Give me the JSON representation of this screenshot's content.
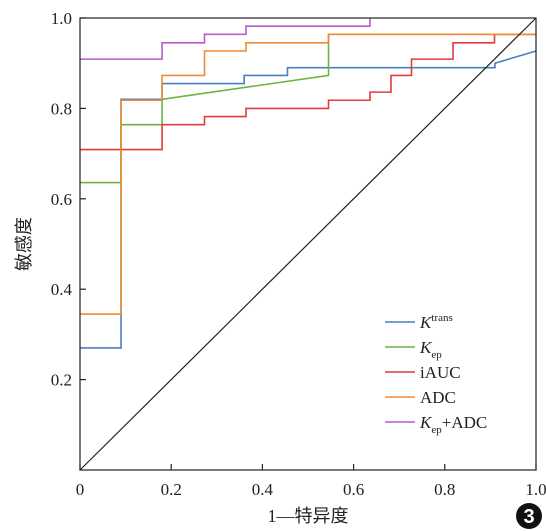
{
  "chart_data": {
    "type": "line",
    "title": "",
    "xlabel": "1—特异度",
    "ylabel": "敏感度",
    "xlim": [
      0,
      1.0
    ],
    "ylim": [
      0,
      1.0
    ],
    "xticks": [
      "0",
      "0.2",
      "0.4",
      "0.6",
      "0.8",
      "1.0"
    ],
    "yticks": [
      "0.2",
      "0.4",
      "0.6",
      "0.8",
      "1.0"
    ],
    "xtick_values": [
      0,
      0.2,
      0.4,
      0.6,
      0.8,
      1.0
    ],
    "ytick_values": [
      0.2,
      0.4,
      0.6,
      0.8,
      1.0
    ],
    "grid": false,
    "legend_position": "bottom-right",
    "figure_number": "3",
    "series": [
      {
        "name": "Ktrans",
        "name_base": "K",
        "name_sup": "trans",
        "name_sub": "",
        "name_suffix": "",
        "color": "#4a7fc4",
        "points": [
          [
            0,
            0.27
          ],
          [
            0.09,
            0.27
          ],
          [
            0.09,
            0.82
          ],
          [
            0.18,
            0.82
          ],
          [
            0.18,
            0.855
          ],
          [
            0.36,
            0.855
          ],
          [
            0.36,
            0.873
          ],
          [
            0.455,
            0.873
          ],
          [
            0.455,
            0.89
          ],
          [
            0.91,
            0.89
          ],
          [
            0.91,
            0.9
          ],
          [
            1.0,
            0.927
          ]
        ]
      },
      {
        "name": "Kep",
        "name_base": "K",
        "name_sup": "",
        "name_sub": "ep",
        "name_suffix": "",
        "color": "#6db33f",
        "points": [
          [
            0,
            0.636
          ],
          [
            0.09,
            0.636
          ],
          [
            0.09,
            0.764
          ],
          [
            0.18,
            0.764
          ],
          [
            0.18,
            0.82
          ],
          [
            0.545,
            0.873
          ],
          [
            0.545,
            0.964
          ],
          [
            1.0,
            0.964
          ]
        ]
      },
      {
        "name": "iAUC",
        "name_base": "iAUC",
        "name_sup": "",
        "name_sub": "",
        "name_suffix": "",
        "color": "#e03c3c",
        "points": [
          [
            0,
            0.709
          ],
          [
            0.18,
            0.709
          ],
          [
            0.18,
            0.764
          ],
          [
            0.273,
            0.764
          ],
          [
            0.273,
            0.782
          ],
          [
            0.364,
            0.782
          ],
          [
            0.364,
            0.8
          ],
          [
            0.545,
            0.8
          ],
          [
            0.545,
            0.818
          ],
          [
            0.636,
            0.818
          ],
          [
            0.636,
            0.836
          ],
          [
            0.636,
            0.836
          ],
          [
            0.636,
            0.836
          ],
          [
            0.682,
            0.836
          ],
          [
            0.682,
            0.873
          ],
          [
            0.727,
            0.873
          ],
          [
            0.727,
            0.909
          ],
          [
            0.818,
            0.909
          ],
          [
            0.818,
            0.945
          ],
          [
            0.909,
            0.945
          ],
          [
            0.909,
            0.964
          ],
          [
            1.0,
            0.964
          ]
        ]
      },
      {
        "name": "ADC",
        "name_base": "ADC",
        "name_sup": "",
        "name_sub": "",
        "name_suffix": "",
        "color": "#f08c35",
        "points": [
          [
            0,
            0.345
          ],
          [
            0.09,
            0.345
          ],
          [
            0.09,
            0.818
          ],
          [
            0.18,
            0.818
          ],
          [
            0.18,
            0.873
          ],
          [
            0.273,
            0.873
          ],
          [
            0.273,
            0.927
          ],
          [
            0.364,
            0.927
          ],
          [
            0.364,
            0.945
          ],
          [
            0.545,
            0.945
          ],
          [
            0.545,
            0.964
          ],
          [
            1.0,
            0.964
          ]
        ]
      },
      {
        "name": "Kep+ADC",
        "name_base": "K",
        "name_sup": "",
        "name_sub": "ep",
        "name_suffix": "+ADC",
        "color": "#b45ec8",
        "points": [
          [
            0,
            0.909
          ],
          [
            0.18,
            0.909
          ],
          [
            0.18,
            0.945
          ],
          [
            0.273,
            0.945
          ],
          [
            0.273,
            0.964
          ],
          [
            0.364,
            0.964
          ],
          [
            0.364,
            0.982
          ],
          [
            0.636,
            0.982
          ],
          [
            0.636,
            1.0
          ],
          [
            0.636,
            1.0
          ]
        ]
      }
    ],
    "reference_line": {
      "points": [
        [
          0,
          0
        ],
        [
          1.0,
          1.0
        ]
      ],
      "color": "#222222"
    }
  }
}
